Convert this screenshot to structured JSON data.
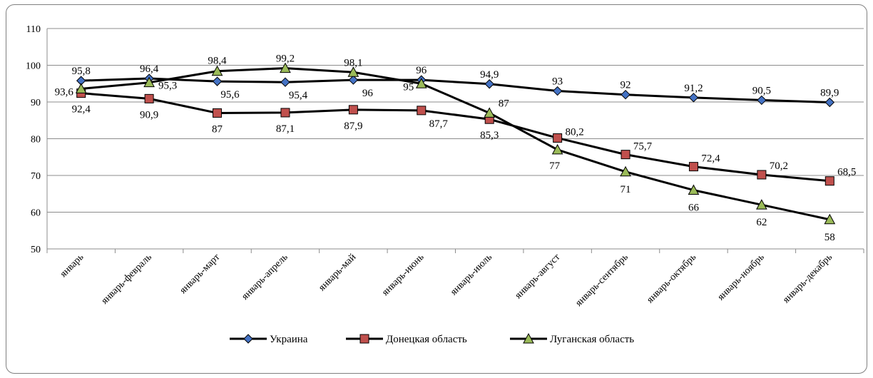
{
  "chart_data": {
    "type": "line",
    "title": "",
    "xlabel": "",
    "ylabel": "",
    "ylim": [
      50,
      110
    ],
    "yticks": [
      50,
      60,
      70,
      80,
      90,
      100,
      110
    ],
    "grid": "horizontal",
    "legend_position": "bottom",
    "categories": [
      "январь",
      "январь-февраль",
      "январь-март",
      "январь-апрель",
      "январь-май",
      "январь-июнь",
      "январь-июль",
      "январь-август",
      "январь-сентябрь",
      "январь-октябрь",
      "январь-ноябрь",
      "январь-декабрь"
    ],
    "series": [
      {
        "name": "Украина",
        "marker": "diamond",
        "color": "#4472C4",
        "values": [
          95.8,
          96.4,
          95.6,
          95.4,
          96,
          96,
          94.9,
          93,
          92,
          91.2,
          90.5,
          89.9
        ],
        "labels": [
          "95,8",
          "96,4",
          "95,6",
          "95,4",
          "96",
          "96",
          "94,9",
          "93",
          "92",
          "91,2",
          "90,5",
          "89,9"
        ]
      },
      {
        "name": "Донецкая область",
        "marker": "square",
        "color": "#C0504D",
        "values": [
          92.4,
          90.9,
          87,
          87.1,
          87.9,
          87.7,
          85.3,
          80.2,
          75.7,
          72.4,
          70.2,
          68.5
        ],
        "labels": [
          "92,4",
          "90,9",
          "87",
          "87,1",
          "87,9",
          "87,7",
          "85,3",
          "80,2",
          "75,7",
          "72,4",
          "70,2",
          "68,5"
        ]
      },
      {
        "name": "Луганская область",
        "marker": "triangle",
        "color": "#9BBB59",
        "values": [
          93.6,
          95.3,
          98.4,
          99.2,
          98.1,
          95,
          87,
          77,
          71,
          66,
          62,
          58
        ],
        "labels": [
          "93,6",
          "95,3",
          "98,4",
          "99,2",
          "98,1",
          "95",
          "87",
          "77",
          "71",
          "66",
          "62",
          "58"
        ]
      }
    ]
  }
}
